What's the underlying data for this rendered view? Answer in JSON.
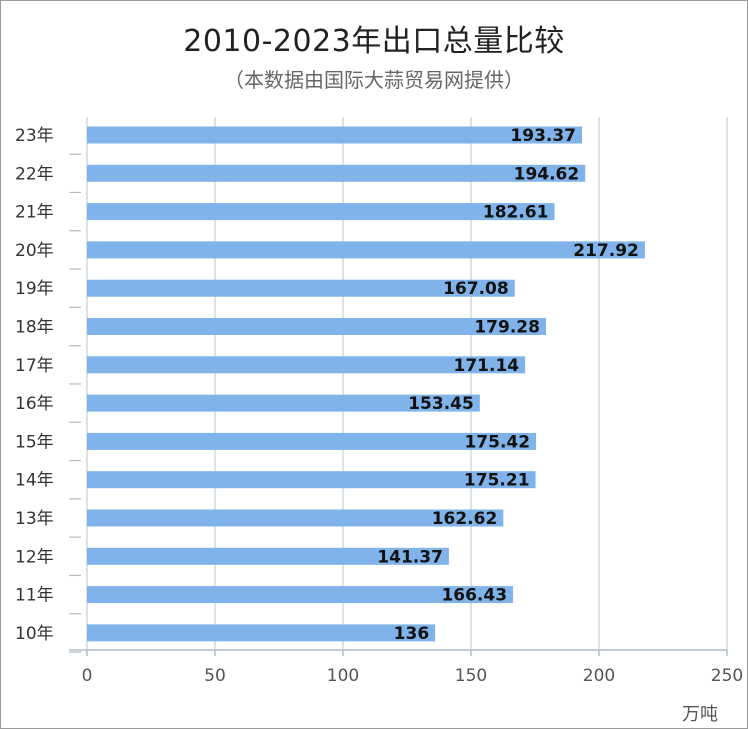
{
  "title": "2010-2023年出口总量比较",
  "subtitle": "（本数据由国际大蒜贸易网提供）",
  "unit": "万吨",
  "colors": {
    "bar": "#7fb3ea",
    "grid": "#cfd8e0",
    "axis": "#b0bcc8"
  },
  "chart_data": {
    "type": "bar",
    "orientation": "horizontal",
    "categories": [
      "23年",
      "22年",
      "21年",
      "20年",
      "19年",
      "18年",
      "17年",
      "16年",
      "15年",
      "14年",
      "13年",
      "12年",
      "11年",
      "10年"
    ],
    "values": [
      193.37,
      194.62,
      182.61,
      217.92,
      167.08,
      179.28,
      171.14,
      153.45,
      175.42,
      175.21,
      162.62,
      141.37,
      166.43,
      136
    ],
    "value_labels": [
      "193.37",
      "194.62",
      "182.61",
      "217.92",
      "167.08",
      "179.28",
      "171.14",
      "153.45",
      "175.42",
      "175.21",
      "162.62",
      "141.37",
      "166.43",
      "136"
    ],
    "xticks": [
      "0",
      "50",
      "100",
      "150",
      "200",
      "250"
    ],
    "xlim": [
      0,
      250
    ],
    "xlabel": "万吨",
    "grid": true,
    "legend": false
  }
}
